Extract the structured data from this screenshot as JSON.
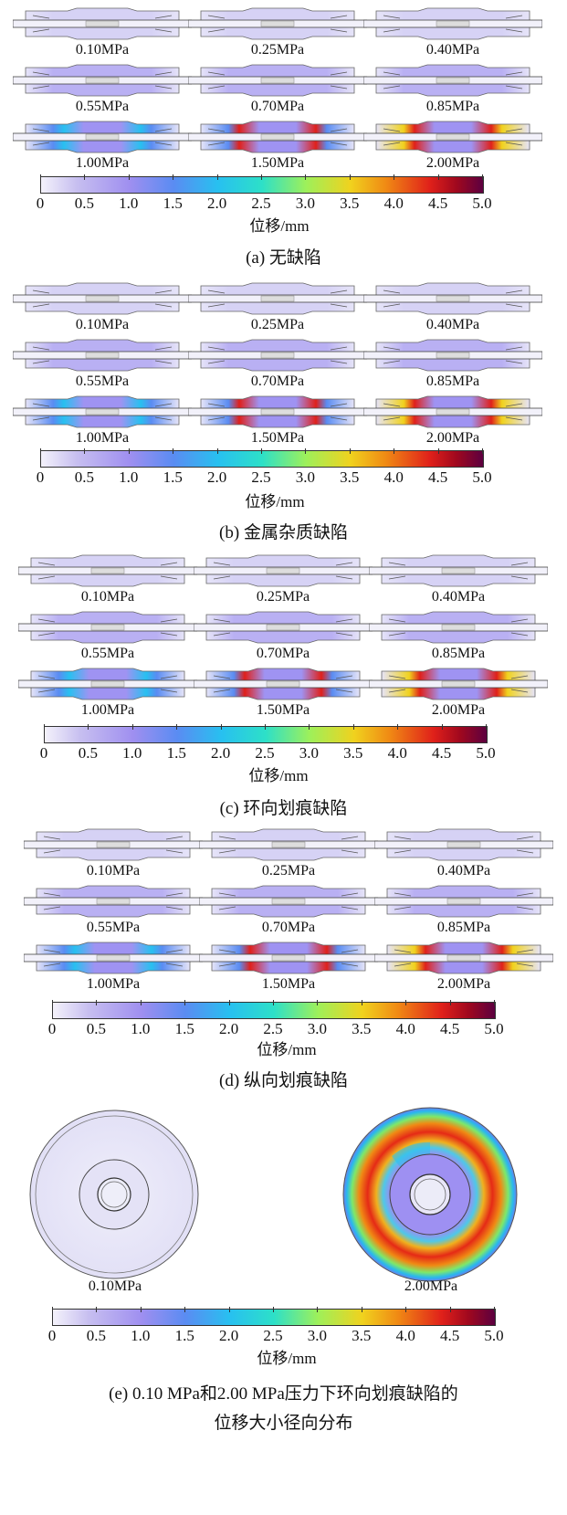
{
  "panels": [
    {
      "id": "a",
      "caption": "(a) 无缺陷",
      "pressures": [
        "0.10MPa",
        "0.25MPa",
        "0.40MPa",
        "0.55MPa",
        "0.70MPa",
        "0.85MPa",
        "1.00MPa",
        "1.50MPa",
        "2.00MPa"
      ],
      "levels": [
        0.1,
        0.15,
        0.2,
        0.3,
        0.35,
        0.4,
        0.6,
        0.8,
        1.0
      ]
    },
    {
      "id": "b",
      "caption": "(b) 金属杂质缺陷",
      "pressures": [
        "0.10MPa",
        "0.25MPa",
        "0.40MPa",
        "0.55MPa",
        "0.70MPa",
        "0.85MPa",
        "1.00MPa",
        "1.50MPa",
        "2.00MPa"
      ],
      "levels": [
        0.1,
        0.15,
        0.2,
        0.3,
        0.35,
        0.4,
        0.6,
        0.8,
        1.0
      ]
    },
    {
      "id": "c",
      "caption": "(c) 环向划痕缺陷",
      "pressures": [
        "0.10MPa",
        "0.25MPa",
        "0.40MPa",
        "0.55MPa",
        "0.70MPa",
        "0.85MPa",
        "1.00MPa",
        "1.50MPa",
        "2.00MPa"
      ],
      "levels": [
        0.1,
        0.15,
        0.2,
        0.3,
        0.35,
        0.4,
        0.55,
        0.75,
        0.9
      ]
    },
    {
      "id": "d",
      "caption": "(d) 纵向划痕缺陷",
      "pressures": [
        "0.10MPa",
        "0.25MPa",
        "0.40MPa",
        "0.55MPa",
        "0.70MPa",
        "0.85MPa",
        "1.00MPa",
        "1.50MPa",
        "2.00MPa"
      ],
      "levels": [
        0.1,
        0.15,
        0.2,
        0.3,
        0.35,
        0.4,
        0.6,
        0.8,
        1.0
      ]
    }
  ],
  "colorbar": {
    "ticks": [
      "0",
      "0.5",
      "1.0",
      "1.5",
      "2.0",
      "2.5",
      "3.0",
      "3.5",
      "4.0",
      "4.5",
      "5.0"
    ],
    "label": "位移/mm"
  },
  "radial": {
    "left_label": "0.10MPa",
    "right_label": "2.00MPa",
    "caption_line1": "(e) 0.10 MPa和2.00 MPa压力下环向划痕缺陷的",
    "caption_line2": "位移大小径向分布"
  }
}
